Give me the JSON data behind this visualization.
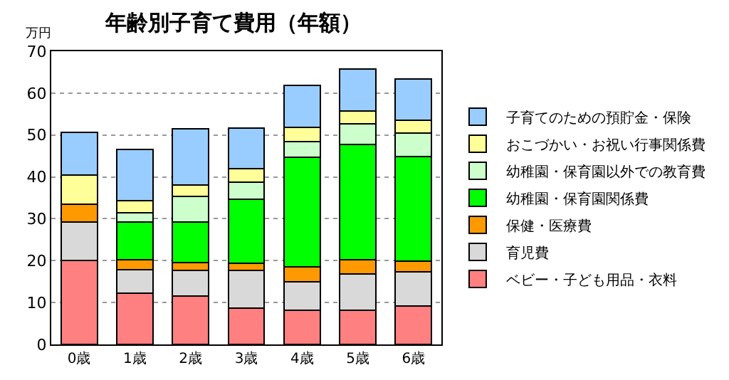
{
  "chart_data": {
    "type": "bar",
    "title": "年齢別子育て費用（年額）",
    "ylabel": "万円",
    "categories": [
      "0歳",
      "1歳",
      "2歳",
      "3歳",
      "4歳",
      "5歳",
      "6歳"
    ],
    "stacked": true,
    "series": [
      {
        "name": "ベビー・子ども用品・衣料",
        "color": "#ff8080",
        "values": [
          20,
          12.3,
          11.6,
          8.6,
          8.2,
          8.2,
          9.1
        ]
      },
      {
        "name": "育児費",
        "color": "#d9d9d9",
        "values": [
          9.3,
          5.6,
          6.1,
          9.0,
          6.7,
          8.7,
          8.3
        ]
      },
      {
        "name": "保健・医療費",
        "color": "#ff9900",
        "values": [
          4.1,
          2.4,
          1.9,
          1.7,
          3.7,
          3.4,
          2.5
        ]
      },
      {
        "name": "幼稚園・保育園関係費",
        "color": "#00ff00",
        "values": [
          null,
          9.0,
          9.7,
          15.4,
          26.1,
          27.4,
          24.9
        ]
      },
      {
        "name": "幼稚園・保育園以外での教育費",
        "color": "#ccffcc",
        "values": [
          null,
          2.1,
          6.1,
          4.0,
          3.8,
          4.9,
          5.6
        ]
      },
      {
        "name": "おこづかい・お祝い行事関係費",
        "color": "#ffff99",
        "values": [
          7.0,
          3.0,
          2.6,
          3.3,
          3.3,
          3.2,
          3.2
        ]
      },
      {
        "name": "子育てのための預貯金・保険",
        "color": "#99ccff",
        "values": [
          10.2,
          12.1,
          13.5,
          9.6,
          10.1,
          10.0,
          9.7
        ]
      }
    ],
    "ylim": [
      0,
      70
    ],
    "yticks": [
      0,
      10,
      20,
      30,
      40,
      50,
      60,
      70
    ],
    "grid": "y",
    "legend": "right"
  }
}
